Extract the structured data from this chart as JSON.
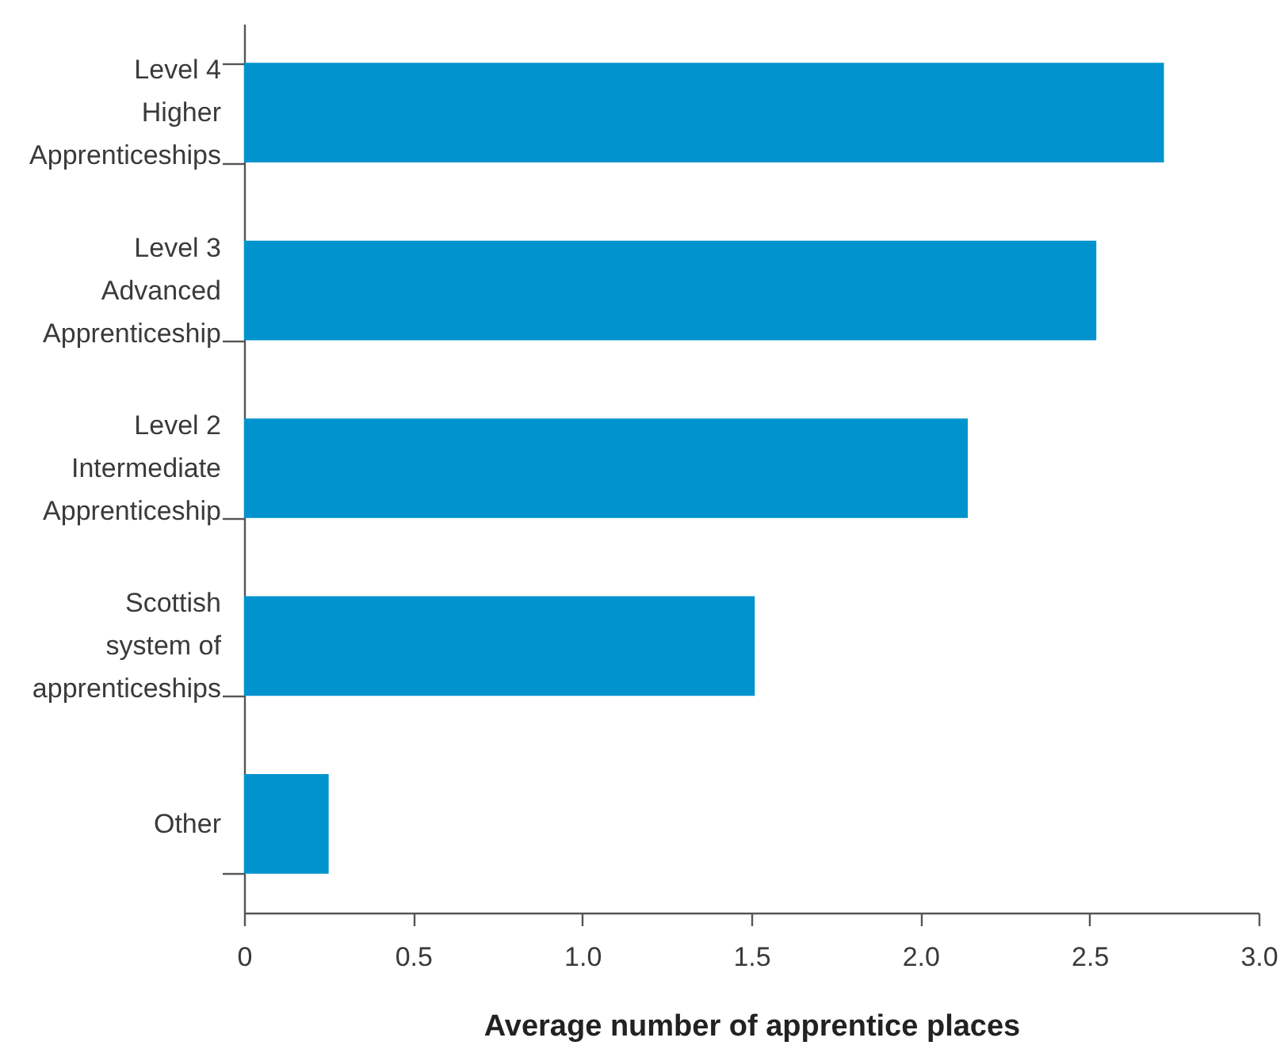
{
  "chart_data": {
    "type": "bar",
    "orientation": "horizontal",
    "xlabel": "Average number of apprentice places",
    "categories": [
      "Level 4 Higher Apprenticeships",
      "Level 3 Advanced Apprenticeship",
      "Level 2 Intermediate Apprenticeship",
      "Scottish system of apprenticeships",
      "Other"
    ],
    "values": [
      2.72,
      2.52,
      2.14,
      1.51,
      0.25
    ],
    "color": "#0093cd",
    "xlim": [
      0,
      3
    ],
    "xticks": [
      0,
      0.5,
      {
        "value": 1,
        "label": "1.0"
      },
      1.5,
      {
        "value": 2,
        "label": "2.0"
      },
      2.5,
      {
        "value": 3,
        "label": "3.0"
      }
    ]
  }
}
